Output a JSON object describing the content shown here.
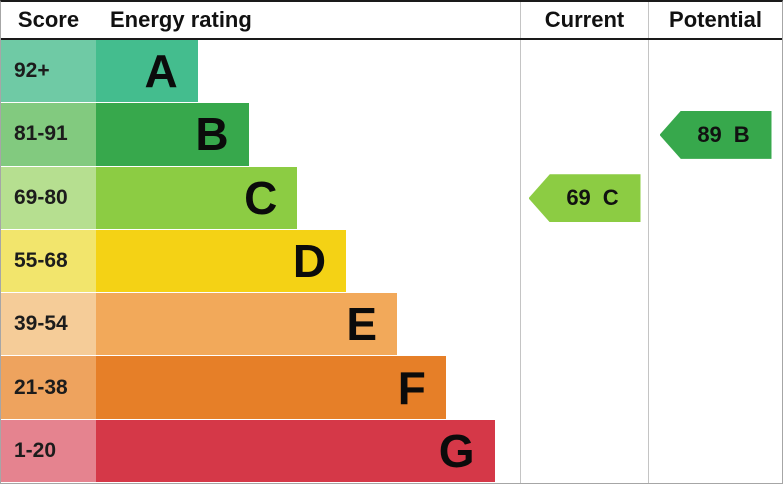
{
  "header": {
    "score": "Score",
    "energy_rating": "Energy rating",
    "current": "Current",
    "potential": "Potential"
  },
  "bands": [
    {
      "range": "92+",
      "letter": "A",
      "bar_color": "#44bd8e",
      "tint_color": "#6fcaa5",
      "bar_width": "24%"
    },
    {
      "range": "81-91",
      "letter": "B",
      "bar_color": "#37a84c",
      "tint_color": "#82ca7f",
      "bar_width": "36%"
    },
    {
      "range": "69-80",
      "letter": "C",
      "bar_color": "#8ccc43",
      "tint_color": "#b6df90",
      "bar_width": "47.5%"
    },
    {
      "range": "55-68",
      "letter": "D",
      "bar_color": "#f4d215",
      "tint_color": "#f2e56c",
      "bar_width": "59%"
    },
    {
      "range": "39-54",
      "letter": "E",
      "bar_color": "#f2a95a",
      "tint_color": "#f5cc98",
      "bar_width": "71%"
    },
    {
      "range": "21-38",
      "letter": "F",
      "bar_color": "#e67f28",
      "tint_color": "#eea35e",
      "bar_width": "82.5%"
    },
    {
      "range": "1-20",
      "letter": "G",
      "bar_color": "#d53848",
      "tint_color": "#e5838f",
      "bar_width": "94%"
    }
  ],
  "current": {
    "value": "69",
    "letter": "C",
    "arrow_color": "#8ccc43"
  },
  "potential": {
    "value": "89",
    "letter": "B",
    "arrow_color": "#37a84c"
  },
  "chart_data": {
    "type": "bar",
    "orientation": "horizontal",
    "title": "Energy rating",
    "categories": [
      "A",
      "B",
      "C",
      "D",
      "E",
      "F",
      "G"
    ],
    "score_ranges": [
      "92+",
      "81-91",
      "69-80",
      "55-68",
      "39-54",
      "21-38",
      "1-20"
    ],
    "bar_lengths_relative": [
      0.24,
      0.36,
      0.475,
      0.59,
      0.71,
      0.825,
      0.94
    ],
    "band_colors": [
      "#44bd8e",
      "#37a84c",
      "#8ccc43",
      "#f4d215",
      "#f2a95a",
      "#e67f28",
      "#d53848"
    ],
    "markers": [
      {
        "name": "Current",
        "value": 69,
        "band": "C",
        "color": "#8ccc43"
      },
      {
        "name": "Potential",
        "value": 89,
        "band": "B",
        "color": "#37a84c"
      }
    ],
    "grid": false,
    "legend_position": "none"
  }
}
